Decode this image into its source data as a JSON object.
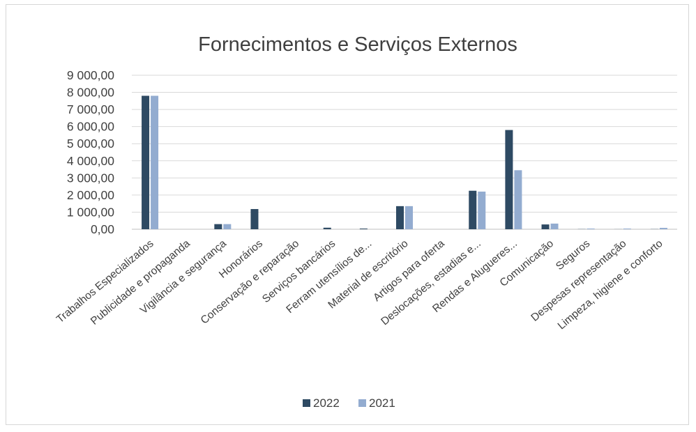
{
  "chart_data": {
    "type": "bar",
    "title": "Fornecimentos e Serviços Externos",
    "xlabel": "",
    "ylabel": "",
    "categories": [
      "Trabalhos Especializados",
      "Publicidade e propaganda",
      "Vigilância e segurança",
      "Honorários",
      "Conservação e reparação",
      "Serviços bancários",
      "Ferram utensílios de...",
      "Material de escritório",
      "Artigos para oferta",
      "Deslocações, estadias e...",
      "Rendas e Alugueres...",
      "Comunicação",
      "Seguros",
      "Despesas representação",
      "Limpeza, higiene e conforto"
    ],
    "series": [
      {
        "name": "2022",
        "color": "#2e4a63",
        "values": [
          7800,
          0,
          300,
          1180,
          0,
          90,
          40,
          1350,
          0,
          2250,
          5800,
          280,
          10,
          5,
          10
        ]
      },
      {
        "name": "2021",
        "color": "#93acd0",
        "values": [
          7800,
          0,
          300,
          0,
          0,
          0,
          0,
          1350,
          0,
          2200,
          3450,
          330,
          40,
          40,
          80
        ]
      }
    ],
    "ylim": [
      0,
      9000
    ],
    "yticks": [
      "0,00",
      "1 000,00",
      "2 000,00",
      "3 000,00",
      "4 000,00",
      "5 000,00",
      "6 000,00",
      "7 000,00",
      "8 000,00",
      "9 000,00"
    ],
    "grid": true,
    "legend_position": "bottom"
  }
}
